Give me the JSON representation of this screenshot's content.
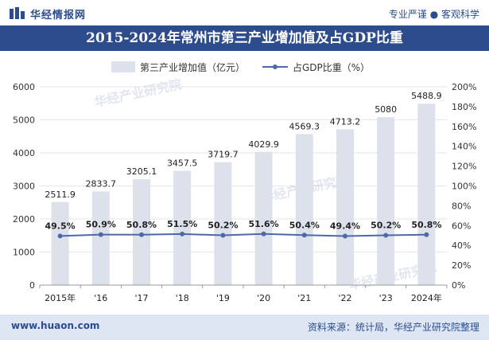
{
  "header": {
    "brand": "华经情报网",
    "slogan": "专业严谨 ● 客观科学",
    "title": "2015-2024年常州市第三产业增加值及占GDP比重"
  },
  "footer": {
    "website": "www.huaon.com",
    "source": "资料来源：统计局，华经产业研究院整理"
  },
  "watermark": "华经产业研究院",
  "colors": {
    "bar": "#dde1ec",
    "line": "#4d6aa8",
    "brand": "#2d4c8b",
    "footer_bg": "#dfe6f3"
  },
  "chart_data": {
    "type": "bar",
    "categories": [
      "2015年",
      "'16",
      "'17",
      "'18",
      "'19",
      "'20",
      "'21",
      "'22",
      "'23",
      "2024年"
    ],
    "series": [
      {
        "name": "第三产业增加值（亿元）",
        "type": "bar",
        "axis": "left",
        "values": [
          2511.9,
          2833.7,
          3205.1,
          3457.5,
          3719.7,
          4029.9,
          4569.3,
          4713.2,
          5080,
          5488.9
        ],
        "labels": [
          "2511.9",
          "2833.7",
          "3205.1",
          "3457.5",
          "3719.7",
          "4029.9",
          "4569.3",
          "4713.2",
          "5080",
          "5488.9"
        ]
      },
      {
        "name": "占GDP比重（%）",
        "type": "line",
        "axis": "right",
        "values": [
          49.5,
          50.9,
          50.8,
          51.5,
          50.2,
          51.6,
          50.4,
          49.4,
          50.2,
          50.8
        ],
        "labels": [
          "49.5%",
          "50.9%",
          "50.8%",
          "51.5%",
          "50.2%",
          "51.6%",
          "50.4%",
          "49.4%",
          "50.2%",
          "50.8%"
        ]
      }
    ],
    "y_left": {
      "min": 0,
      "max": 6000,
      "ticks": [
        "0",
        "1000",
        "2000",
        "3000",
        "4000",
        "5000",
        "6000"
      ]
    },
    "y_right": {
      "min": 0,
      "max": 200,
      "ticks": [
        "0%",
        "20%",
        "40%",
        "60%",
        "80%",
        "100%",
        "120%",
        "140%",
        "160%",
        "180%",
        "200%"
      ]
    },
    "grid": true,
    "legend": "top-center"
  }
}
